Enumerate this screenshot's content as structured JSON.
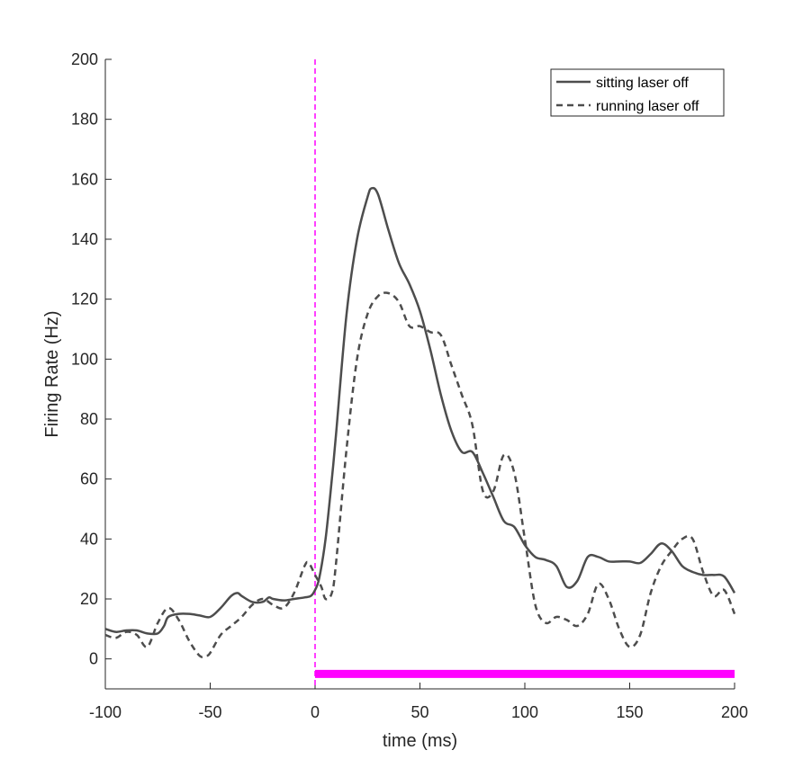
{
  "chart_data": {
    "type": "line",
    "title": "",
    "xlabel": "time (ms)",
    "ylabel": "Firing Rate (Hz)",
    "xlim": [
      -100,
      200
    ],
    "ylim": [
      -10,
      200
    ],
    "xticks": [
      -100,
      -50,
      0,
      50,
      100,
      150,
      200
    ],
    "yticks": [
      0,
      20,
      40,
      60,
      80,
      100,
      120,
      140,
      160,
      180,
      200
    ],
    "grid": false,
    "legend_position": "top-right",
    "stimulus_onset": {
      "x": 0,
      "color": "#ff00ff",
      "style": "dashed"
    },
    "stimulus_bar": {
      "x_start": 0,
      "x_end": 200,
      "y": -5,
      "color": "#ff00ff"
    },
    "series": [
      {
        "name": "sitting laser off",
        "style": "solid",
        "color": "#4d4d4d",
        "x": [
          -100,
          -95,
          -90,
          -85,
          -80,
          -75,
          -72,
          -70,
          -65,
          -60,
          -55,
          -50,
          -45,
          -40,
          -37,
          -35,
          -30,
          -25,
          -22,
          -20,
          -15,
          -10,
          -5,
          -2,
          0,
          2,
          5,
          8,
          10,
          15,
          20,
          25,
          27,
          30,
          35,
          40,
          45,
          50,
          55,
          60,
          65,
          70,
          75,
          80,
          85,
          90,
          95,
          100,
          105,
          110,
          115,
          120,
          125,
          130,
          135,
          140,
          145,
          150,
          155,
          160,
          165,
          170,
          175,
          180,
          185,
          190,
          195,
          200
        ],
        "y": [
          10,
          9,
          9.5,
          9.5,
          8.5,
          8.5,
          11,
          14,
          15,
          15,
          14.5,
          14,
          17,
          21,
          22,
          21,
          19,
          19,
          20.5,
          20,
          19.5,
          20,
          20.5,
          21,
          23,
          27,
          40,
          60,
          75,
          115,
          140,
          154,
          157,
          155,
          143,
          132,
          125,
          116,
          103,
          88,
          76,
          69,
          69,
          62,
          54,
          46,
          44,
          38,
          34,
          33,
          31,
          24,
          26,
          34,
          34,
          32.5,
          32.5,
          32.5,
          32,
          35,
          38.5,
          36,
          31,
          29,
          28,
          28,
          27.5,
          22
        ]
      },
      {
        "name": "running laser off",
        "style": "dashed",
        "color": "#4d4d4d",
        "x": [
          -100,
          -95,
          -90,
          -85,
          -80,
          -75,
          -70,
          -65,
          -60,
          -55,
          -52,
          -50,
          -45,
          -40,
          -35,
          -30,
          -25,
          -20,
          -15,
          -10,
          -5,
          -3,
          0,
          3,
          5,
          8,
          10,
          15,
          20,
          25,
          30,
          35,
          40,
          45,
          50,
          55,
          60,
          65,
          70,
          75,
          80,
          85,
          90,
          95,
          100,
          105,
          110,
          115,
          120,
          125,
          130,
          135,
          140,
          145,
          150,
          155,
          160,
          165,
          170,
          175,
          180,
          185,
          190,
          195,
          200
        ],
        "y": [
          8,
          7,
          9,
          8,
          4,
          12,
          17,
          13,
          6,
          1,
          1,
          2,
          8,
          11,
          14,
          18,
          20,
          18,
          17,
          22,
          31,
          32,
          28,
          24,
          20,
          22,
          32,
          70,
          100,
          115,
          121,
          122,
          119,
          111,
          111,
          109,
          108,
          98,
          88,
          78,
          56,
          56,
          68,
          62,
          40,
          18,
          12,
          14,
          13,
          11,
          15,
          25,
          20,
          10,
          4,
          8,
          22,
          31,
          36,
          40,
          40,
          29,
          21,
          23,
          15
        ]
      }
    ]
  }
}
